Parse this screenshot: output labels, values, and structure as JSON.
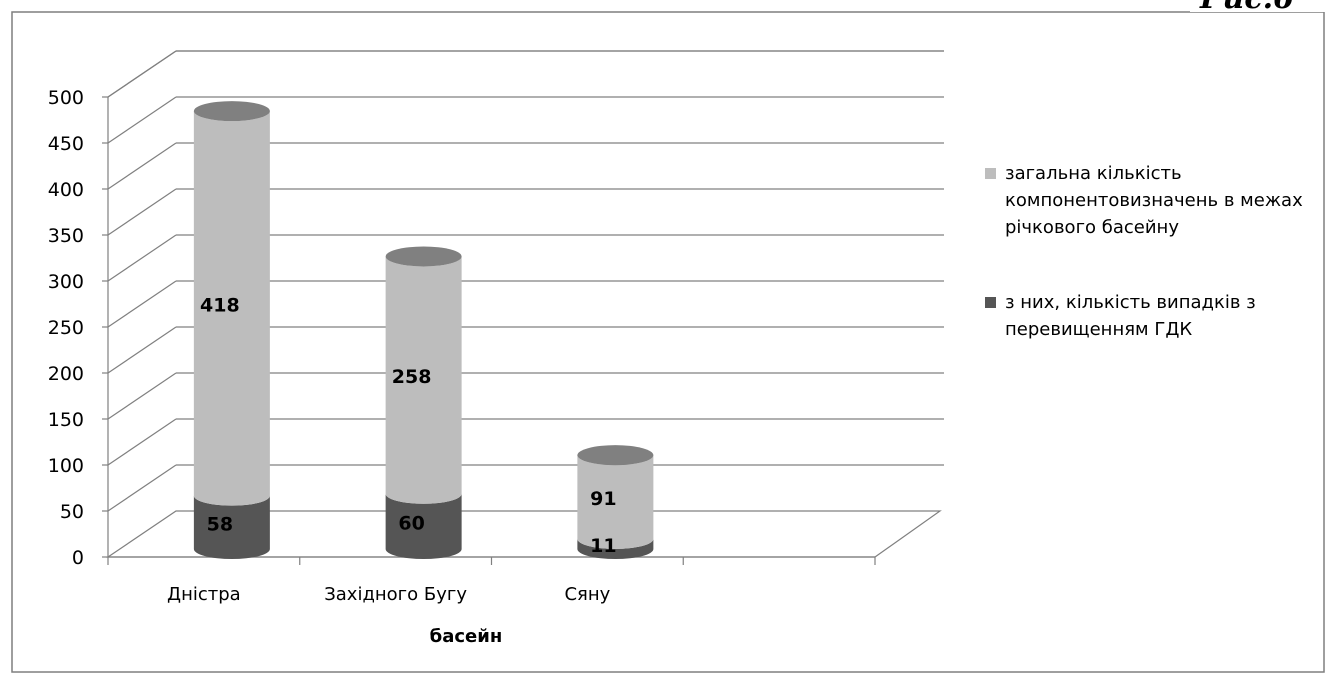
{
  "corner_label": "Рис.6",
  "colors": {
    "series_total": "#bdbdbd",
    "series_exceed": "#555555",
    "grid": "#808080",
    "frame": "#7f7f7f"
  },
  "chart_data": {
    "type": "bar",
    "style": "3d-cylinder-stacked",
    "categories": [
      "Дністра",
      "Західного Бугу",
      "Сяну"
    ],
    "series": [
      {
        "name": "з них, кількість випадків з перевищенням ГДК",
        "values": [
          58,
          60,
          11
        ],
        "color": "#555555"
      },
      {
        "name": "загальна кількість компонентовизначень в межах річкового басейну",
        "values": [
          418,
          258,
          91
        ],
        "color": "#bdbdbd"
      }
    ],
    "title": "",
    "xlabel": "басейн",
    "ylabel": "",
    "ylim": [
      0,
      500
    ],
    "yticks": [
      "0",
      "50",
      "100",
      "150",
      "200",
      "250",
      "300",
      "350",
      "400",
      "450",
      "500"
    ],
    "grid": true,
    "legend_position": "right"
  }
}
